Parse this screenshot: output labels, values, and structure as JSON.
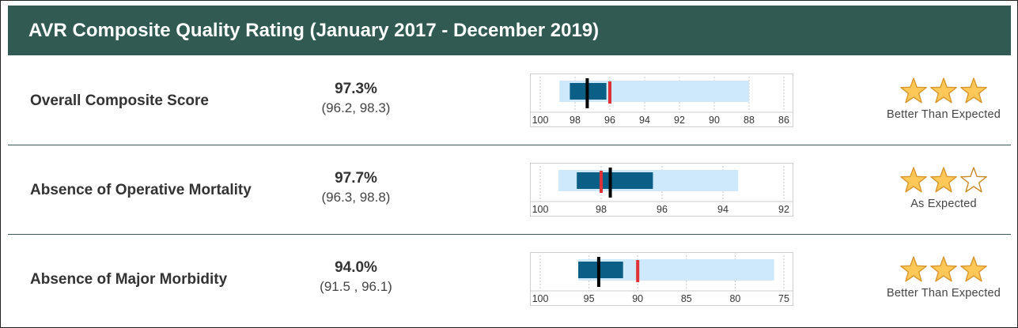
{
  "header": {
    "title": "AVR Composite Quality Rating (January 2017 - December 2019)"
  },
  "colors": {
    "header_bg": "#305a52",
    "ci_bar": "#cfe9fc",
    "score_bar": "#0b5f86",
    "black_marker": "#000000",
    "red_marker": "#e03038",
    "star_fill": "#fdc858",
    "star_stroke": "#d9962e"
  },
  "rows": [
    {
      "label": "Overall Composite Score",
      "score": "97.3%",
      "ci": "(96.2, 98.3)",
      "stars": 3,
      "rating_label": "Better Than Expected",
      "chart": {
        "ticks": [
          "100",
          "98",
          "96",
          "94",
          "92",
          "90",
          "88",
          "86"
        ],
        "axis_min": 86,
        "axis_max": 100,
        "light_bar": [
          88.0,
          98.9
        ],
        "dark_bar": [
          96.2,
          98.3
        ],
        "black_marker": 97.3,
        "red_marker": 96.0
      }
    },
    {
      "label": "Absence of Operative Mortality",
      "score": "97.7%",
      "ci": "(96.3, 98.8)",
      "stars": 2,
      "rating_label": "As Expected",
      "chart": {
        "ticks": [
          "100",
          "98",
          "96",
          "94",
          "92"
        ],
        "axis_min": 92,
        "axis_max": 100,
        "light_bar": [
          93.5,
          99.4
        ],
        "dark_bar": [
          96.3,
          98.8
        ],
        "black_marker": 97.7,
        "red_marker": 98.0
      }
    },
    {
      "label": "Absence of Major Morbidity",
      "score": "94.0%",
      "ci": "(91.5 , 96.1)",
      "stars": 3,
      "rating_label": "Better Than Expected",
      "chart": {
        "ticks": [
          "100",
          "95",
          "90",
          "85",
          "80",
          "75"
        ],
        "axis_min": 75,
        "axis_max": 100,
        "light_bar": [
          76.0,
          96.1
        ],
        "dark_bar": [
          91.5,
          96.1
        ],
        "black_marker": 94.0,
        "red_marker": 90.0
      }
    }
  ]
}
